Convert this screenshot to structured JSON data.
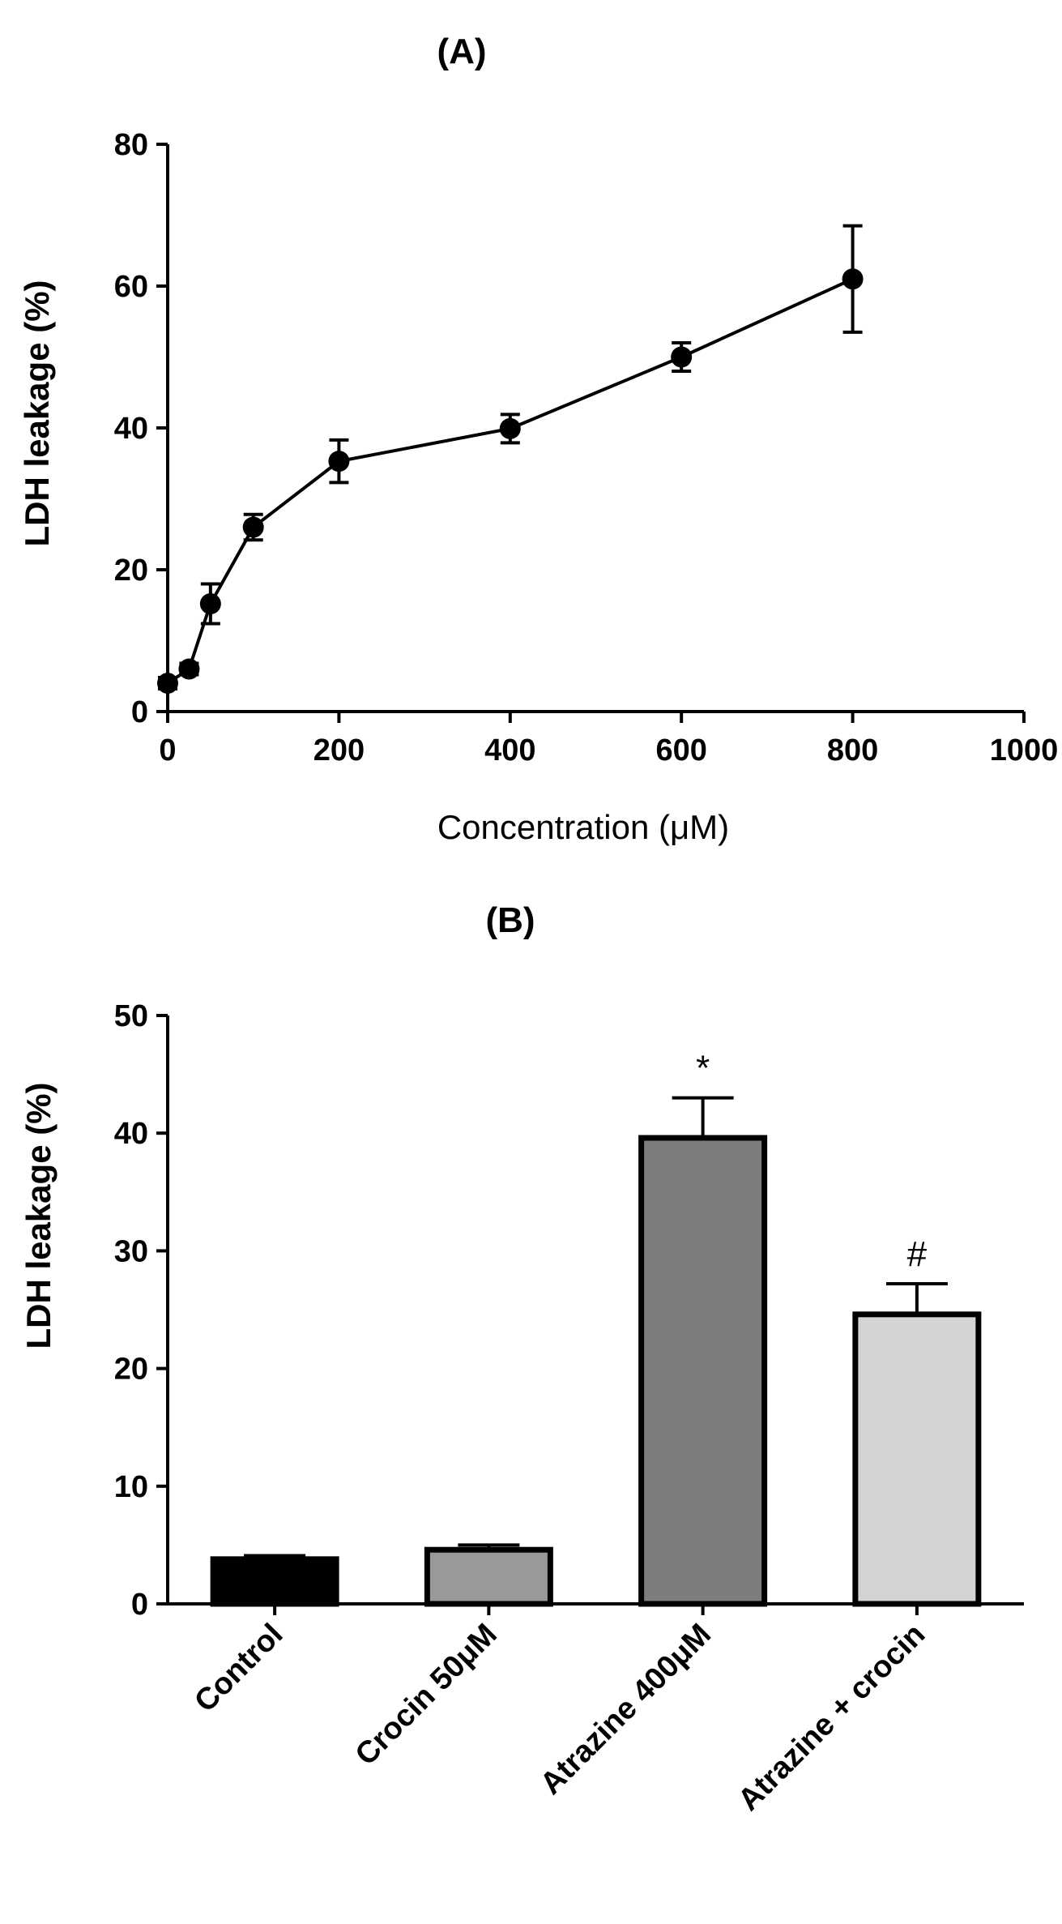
{
  "chart_data": [
    {
      "type": "line",
      "title": "(A)",
      "xlabel": "Concentration (μM)",
      "ylabel": "LDH leakage (%)",
      "xlim": [
        0,
        1000
      ],
      "ylim": [
        0,
        80
      ],
      "xticks": [
        "0",
        "200",
        "400",
        "600",
        "800",
        "1000"
      ],
      "yticks": [
        "0",
        "20",
        "40",
        "60",
        "80"
      ],
      "grid": false,
      "series": [
        {
          "x": [
            0,
            25,
            50,
            100,
            200,
            400,
            600,
            800
          ],
          "y": [
            4,
            6,
            15.2,
            26,
            35.3,
            39.9,
            50,
            61
          ],
          "error": [
            0.8,
            0.8,
            2.8,
            1.8,
            3,
            2,
            2,
            7.5
          ]
        }
      ]
    },
    {
      "type": "bar",
      "title": "(B)",
      "xlabel": "",
      "ylabel": "LDH leakage (%)",
      "ylim": [
        0,
        50
      ],
      "yticks": [
        "0",
        "10",
        "20",
        "30",
        "40",
        "50"
      ],
      "grid": false,
      "categories": [
        "Control",
        "Crocin 50μM",
        "Atrazine 400μM",
        "Atrazine + crocin"
      ],
      "values": [
        3.8,
        4.6,
        39.6,
        24.6
      ],
      "error": [
        0.3,
        0.4,
        3.4,
        2.6
      ],
      "annotations": [
        "",
        "",
        "*",
        "#"
      ],
      "colors": [
        "#000000",
        "#999999",
        "#7d7d7d",
        "#d4d4d4"
      ]
    }
  ]
}
